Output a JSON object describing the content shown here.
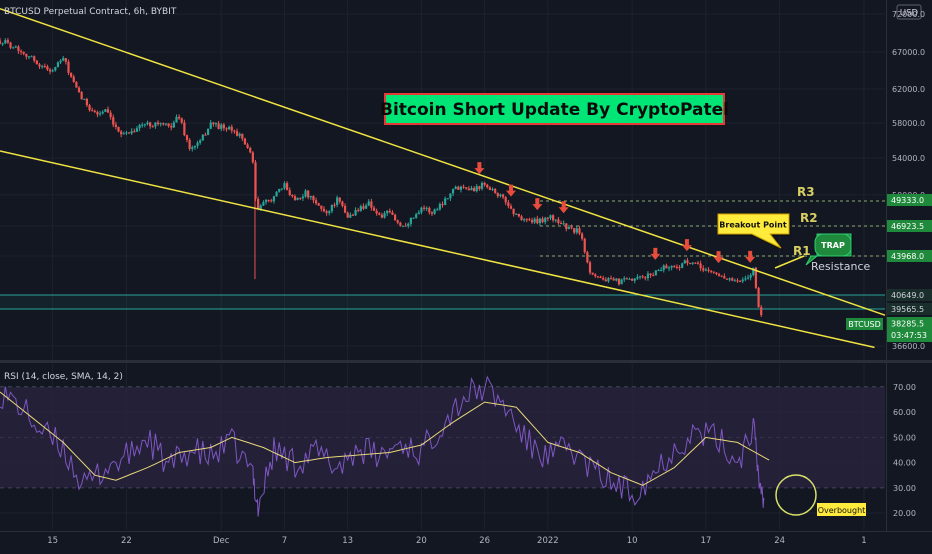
{
  "header": {
    "symbol_title": "BTCUSD Perpetual Contract, 6h, BYBIT",
    "currency": "USD"
  },
  "title_box": {
    "text": "Bitcoin Short Update By CryptoPatel",
    "bg": "#00e676",
    "border": "#e53935"
  },
  "colors": {
    "background": "#131722",
    "grid": "#1e222d",
    "up": "#26a69a",
    "down": "#ef5350",
    "trendline": "#f0e442",
    "horizontal_line": "#26a69a",
    "rsi_line": "#7e57c2",
    "rsi_ma": "#e8d77a",
    "rsi_band": "#2a2440",
    "label_green": "#1f8a3c",
    "arrow": "#e74c3c"
  },
  "chart_data": [
    {
      "type": "candlestick",
      "title": "BTCUSD Perpetual Contract, 6h, BYBIT",
      "ylim": [
        35500,
        73000
      ],
      "y_ticks": [
        72000.0,
        67000.0,
        62000.0,
        58000.0,
        54000.0,
        50000.0,
        46923.5,
        43968.0,
        40649.0,
        39565.5,
        36600.0
      ],
      "x_ticks": [
        "15",
        "22",
        "Dec",
        "7",
        "13",
        "20",
        "26",
        "2022",
        "10",
        "17",
        "24",
        "1"
      ],
      "x_tick_days": [
        14,
        21,
        30,
        36,
        42,
        49,
        55,
        61,
        69,
        76,
        83,
        91
      ],
      "x_range_days": [
        9,
        93
      ],
      "close_path": [
        [
          9,
          68500
        ],
        [
          10.3,
          67800
        ],
        [
          11.7,
          66500
        ],
        [
          13,
          65000
        ],
        [
          14,
          64500
        ],
        [
          15,
          66200
        ],
        [
          16.2,
          62000
        ],
        [
          17,
          60500
        ],
        [
          18.2,
          59000
        ],
        [
          19,
          59500
        ],
        [
          20,
          57200
        ],
        [
          21,
          56800
        ],
        [
          22.5,
          57800
        ],
        [
          24,
          58000
        ],
        [
          25,
          57500
        ],
        [
          26,
          58800
        ],
        [
          27,
          55000
        ],
        [
          28,
          55800
        ],
        [
          29,
          58000
        ],
        [
          30,
          57500
        ],
        [
          31.4,
          57000
        ],
        [
          32.4,
          55500
        ],
        [
          33,
          53500
        ],
        [
          33.3,
          48500
        ],
        [
          34,
          49000
        ],
        [
          35,
          49800
        ],
        [
          36,
          51000
        ],
        [
          37,
          49500
        ],
        [
          38,
          50200
        ],
        [
          39,
          49000
        ],
        [
          40,
          48200
        ],
        [
          41,
          49500
        ],
        [
          42,
          47800
        ],
        [
          43,
          48500
        ],
        [
          44,
          49200
        ],
        [
          45,
          47800
        ],
        [
          46,
          48200
        ],
        [
          47,
          46900
        ],
        [
          48,
          47500
        ],
        [
          49,
          48800
        ],
        [
          50,
          48200
        ],
        [
          51,
          49200
        ],
        [
          52,
          50600
        ],
        [
          53,
          51000
        ],
        [
          54,
          50600
        ],
        [
          55,
          51300
        ],
        [
          56,
          50300
        ],
        [
          57,
          49300
        ],
        [
          58,
          47900
        ],
        [
          59,
          47500
        ],
        [
          60,
          47300
        ],
        [
          61,
          47800
        ],
        [
          62,
          47400
        ],
        [
          63,
          46600
        ],
        [
          64,
          46400
        ],
        [
          65,
          42700
        ],
        [
          66,
          42100
        ],
        [
          67,
          41800
        ],
        [
          68,
          41800
        ],
        [
          69,
          41900
        ],
        [
          70,
          42100
        ],
        [
          71,
          42500
        ],
        [
          72,
          43100
        ],
        [
          73,
          43000
        ],
        [
          74,
          43400
        ],
        [
          75,
          43200
        ],
        [
          76,
          42800
        ],
        [
          77,
          42400
        ],
        [
          78,
          42100
        ],
        [
          79,
          41700
        ],
        [
          80,
          42000
        ],
        [
          80.5,
          42900
        ],
        [
          81,
          39900
        ],
        [
          81.4,
          38300
        ]
      ],
      "series": [
        {
          "name": "Upper trendline",
          "x": [
            9,
            93
          ],
          "y": [
            72700,
            39000
          ]
        },
        {
          "name": "Lower trendline",
          "x": [
            9,
            92
          ],
          "y": [
            54800,
            36500
          ]
        }
      ],
      "horizontal_levels": [
        {
          "label": "R3",
          "value": 49333.0,
          "style": "dashed"
        },
        {
          "label": "R2",
          "value": 46923.5,
          "style": "dashed"
        },
        {
          "label": "R1",
          "value": 43968.0,
          "style": "dashed"
        },
        {
          "label": "",
          "value": 40649.0,
          "style": "solid"
        },
        {
          "label": "",
          "value": 39565.5,
          "style": "solid"
        }
      ],
      "price_labels": {
        "r3": "49333.0",
        "r2": "46923.5",
        "r1": "43968.0",
        "level_a": "40649.0",
        "level_b": "39565.5",
        "last_price": "38285.5",
        "countdown": "03:47:53",
        "symbol": "BTCUSD",
        "bottom": "36600.0"
      },
      "annotations": {
        "breakout_point": "Breakout Point",
        "trap": "TRAP",
        "resistance": "Resistance",
        "r1": "R1",
        "r2": "R2",
        "r3": "R3"
      },
      "sell_arrow_days": [
        54.5,
        57.5,
        60,
        62.5,
        71.2,
        74.2,
        77.2,
        80.2
      ]
    },
    {
      "type": "line",
      "title": "RSI (14, close, SMA, 14, 2)",
      "ylim": [
        15,
        75
      ],
      "y_ticks": [
        "70.00",
        "60.00",
        "50.00",
        "40.00",
        "30.00",
        "20.00"
      ],
      "band": [
        30,
        70
      ],
      "x_range_days": [
        9,
        93
      ],
      "series": [
        {
          "name": "RSI",
          "x": [
            9,
            11,
            13,
            15,
            17,
            19,
            21,
            23,
            25,
            27,
            29,
            31,
            33,
            33.5,
            35,
            37,
            39,
            41,
            43,
            45,
            47,
            49,
            51,
            53,
            55,
            57,
            59,
            61,
            63,
            65,
            67,
            69,
            71,
            73,
            75,
            77,
            79,
            80.5,
            81,
            81.5
          ],
          "y": [
            68,
            62,
            52,
            46,
            30,
            38,
            42,
            50,
            38,
            45,
            42,
            48,
            35,
            22,
            45,
            40,
            44,
            38,
            46,
            42,
            48,
            44,
            56,
            66,
            70,
            62,
            48,
            42,
            46,
            38,
            32,
            28,
            36,
            46,
            52,
            50,
            40,
            55,
            34,
            26
          ]
        },
        {
          "name": "RSI-based MA",
          "x": [
            9,
            12,
            15,
            18,
            20,
            23,
            26,
            29,
            31,
            34,
            37,
            40,
            43,
            46,
            49,
            52,
            55,
            58,
            61,
            64,
            67,
            70,
            73,
            76,
            79,
            82
          ],
          "y": [
            68,
            58,
            48,
            35,
            33,
            38,
            44,
            46,
            50,
            46,
            40,
            42,
            43,
            44,
            47,
            56,
            64,
            62,
            48,
            44,
            36,
            31,
            38,
            50,
            48,
            41
          ]
        }
      ],
      "annotation": "Overbought"
    }
  ]
}
